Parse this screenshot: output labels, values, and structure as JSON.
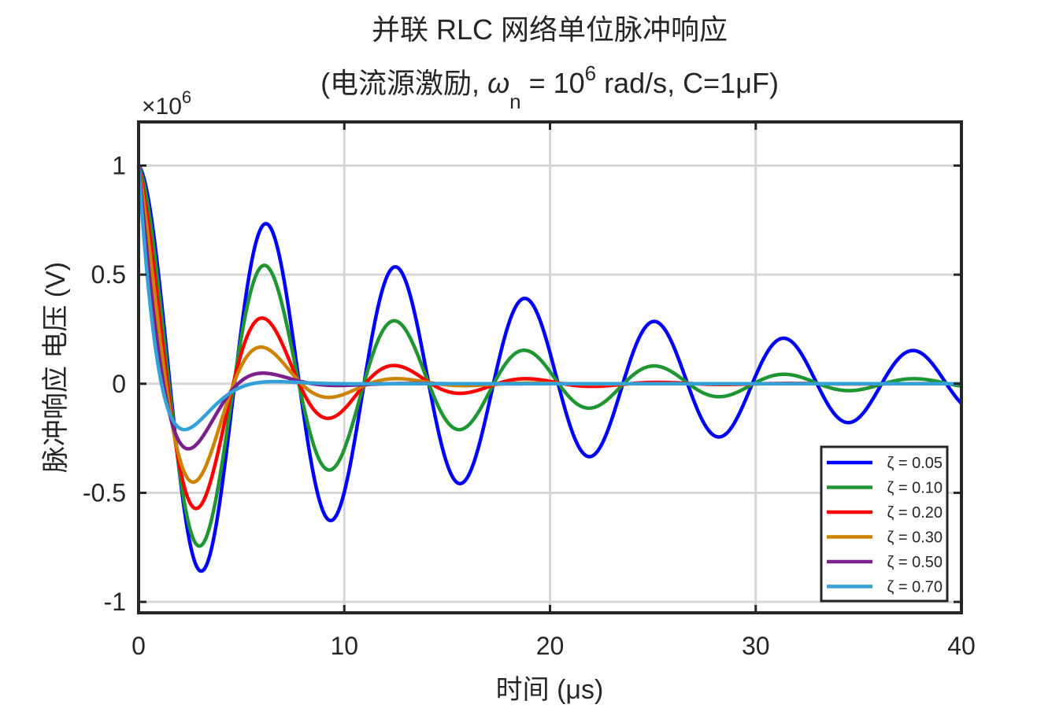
{
  "chart_data": {
    "type": "line",
    "title_line1": "并联 RLC 网络单位脉冲响应",
    "title_line2": {
      "prefix": "(电流源激励, ",
      "omega": "ω",
      "omega_sub": "n",
      "equals": " = 10",
      "exp": "6",
      "suffix": " rad/s, C=1μF)"
    },
    "xlabel": "时间 (μs)",
    "ylabel": "脉冲响应 电压 (V)",
    "y_multiplier": {
      "base": "×10",
      "exp": "6"
    },
    "xlim": [
      0,
      40
    ],
    "ylim": [
      -1.05,
      1.2
    ],
    "xticks": [
      0,
      10,
      20,
      30,
      40
    ],
    "xtick_labels": [
      "0",
      "10",
      "20",
      "30",
      "40"
    ],
    "yticks": [
      -1,
      -0.5,
      0,
      0.5,
      1
    ],
    "ytick_labels": [
      "-1",
      "-0.5",
      "0",
      "0.5",
      "1"
    ],
    "y_scale_note": "values in units of 10^6 V",
    "grid": true,
    "legend_position": "bottom-right",
    "series": [
      {
        "name": "ζ = 0.05",
        "zeta": 0.05,
        "color": "#0000ff"
      },
      {
        "name": "ζ = 0.10",
        "zeta": 0.1,
        "color": "#1e9632"
      },
      {
        "name": "ζ = 0.20",
        "zeta": 0.2,
        "color": "#ff0000"
      },
      {
        "name": "ζ = 0.30",
        "zeta": 0.3,
        "color": "#cc8400"
      },
      {
        "name": "ζ = 0.50",
        "zeta": 0.5,
        "color": "#7a1f8c"
      },
      {
        "name": "ζ = 0.70",
        "zeta": 0.7,
        "color": "#33a0d8"
      }
    ],
    "model": "v(t) = e^(-ζωn t)·[cos(ωd t) − ζ/√(1−ζ²)·sin(ωd t)] (×10^6), ωn = 1 rad/μs, ωd = ωn√(1−ζ²)"
  }
}
